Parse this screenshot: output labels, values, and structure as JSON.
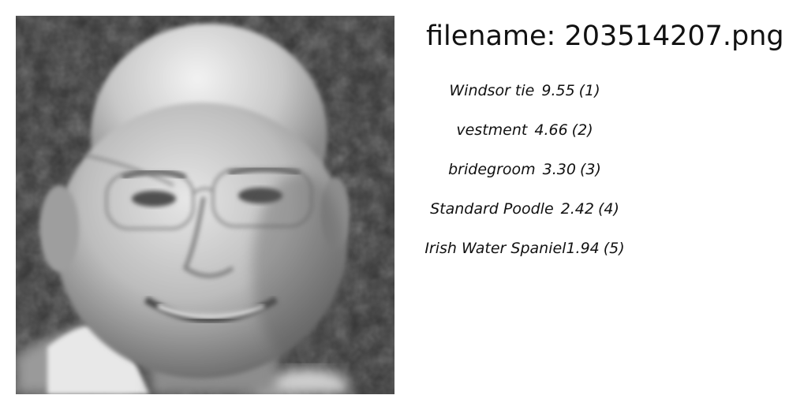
{
  "header": {
    "filename_label": "filename: 203514207.png"
  },
  "image": {
    "description_icon": "portrait-photo",
    "tone": "grayscale"
  },
  "predictions": [
    {
      "label": "Windsor tie",
      "score": "9.55",
      "rank": "1"
    },
    {
      "label": "vestment",
      "score": "4.66",
      "rank": "2"
    },
    {
      "label": "bridegroom",
      "score": "3.30",
      "rank": "3"
    },
    {
      "label": "Standard Poodle",
      "score": "2.42",
      "rank": "4"
    },
    {
      "label": "Irish Water Spaniel",
      "score": "1.94",
      "rank": "5"
    }
  ]
}
